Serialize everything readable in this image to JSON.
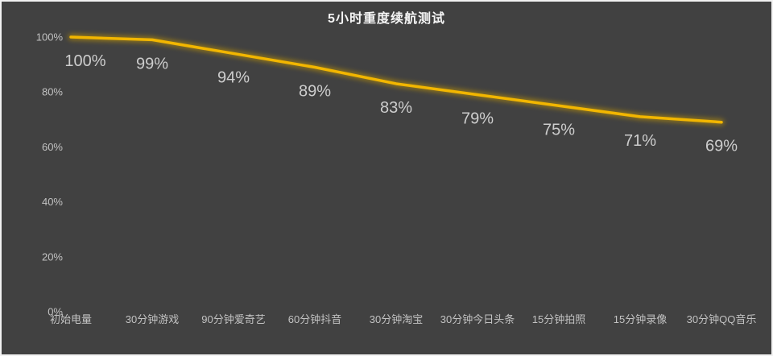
{
  "frame": {
    "background_color": "#414141",
    "border_color": "#f2f2f2"
  },
  "chart_data": {
    "type": "line",
    "title": "5小时重度续航测试",
    "categories": [
      "初始电量",
      "30分钟游戏",
      "90分钟爱奇艺",
      "60分钟抖音",
      "30分钟淘宝",
      "30分钟今日头条",
      "15分钟拍照",
      "15分钟录像",
      "30分钟QQ音乐"
    ],
    "values": [
      100,
      99,
      94,
      89,
      83,
      79,
      75,
      71,
      69
    ],
    "data_labels": [
      "100%",
      "99%",
      "94%",
      "89%",
      "83%",
      "79%",
      "75%",
      "71%",
      "69%"
    ],
    "y_ticks": [
      {
        "value": 0,
        "label": "0%"
      },
      {
        "value": 20,
        "label": "20%"
      },
      {
        "value": 40,
        "label": "40%"
      },
      {
        "value": 60,
        "label": "60%"
      },
      {
        "value": 80,
        "label": "80%"
      },
      {
        "value": 100,
        "label": "100%"
      }
    ],
    "xlabel": "",
    "ylabel": "",
    "ylim": [
      0,
      100
    ],
    "grid": false,
    "legend_position": "none",
    "line_color": "#f2b600",
    "glow_color": "#c79a00",
    "data_label_color": "#cdcdcd",
    "axis_label_color": "#c2c2c2",
    "title_color": "#f5f5f5"
  }
}
